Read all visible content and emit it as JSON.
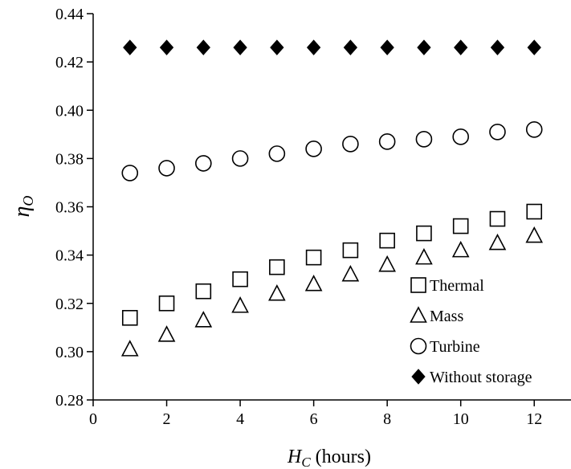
{
  "chart_data": {
    "type": "scatter",
    "x": [
      1,
      2,
      3,
      4,
      5,
      6,
      7,
      8,
      9,
      10,
      11,
      12
    ],
    "xlim": [
      0,
      13
    ],
    "ylim": [
      0.28,
      0.44
    ],
    "xticks": [
      "0",
      "2",
      "4",
      "6",
      "8",
      "10",
      "12"
    ],
    "yticks": [
      "0.28",
      "0.30",
      "0.32",
      "0.34",
      "0.36",
      "0.38",
      "0.40",
      "0.42",
      "0.44"
    ],
    "xlabel": {
      "symbol": "H",
      "subscript": "C",
      "suffix": " (hours)"
    },
    "ylabel": {
      "symbol": "η",
      "subscript": "O"
    },
    "grid": false,
    "legend_position": "bottom-right",
    "series": [
      {
        "name": "Thermal",
        "marker": "square-open",
        "color": "#000000",
        "values": [
          0.314,
          0.32,
          0.325,
          0.33,
          0.335,
          0.339,
          0.342,
          0.346,
          0.349,
          0.352,
          0.355,
          0.358
        ]
      },
      {
        "name": "Mass",
        "marker": "triangle-open",
        "color": "#000000",
        "values": [
          0.301,
          0.307,
          0.313,
          0.319,
          0.324,
          0.328,
          0.332,
          0.336,
          0.339,
          0.342,
          0.345,
          0.348
        ]
      },
      {
        "name": "Turbine",
        "marker": "circle-open",
        "color": "#000000",
        "values": [
          0.374,
          0.376,
          0.378,
          0.38,
          0.382,
          0.384,
          0.386,
          0.387,
          0.388,
          0.389,
          0.391,
          0.392
        ]
      },
      {
        "name": "Without storage",
        "marker": "diamond-filled",
        "color": "#000000",
        "values": [
          0.426,
          0.426,
          0.426,
          0.426,
          0.426,
          0.426,
          0.426,
          0.426,
          0.426,
          0.426,
          0.426,
          0.426
        ]
      }
    ]
  }
}
